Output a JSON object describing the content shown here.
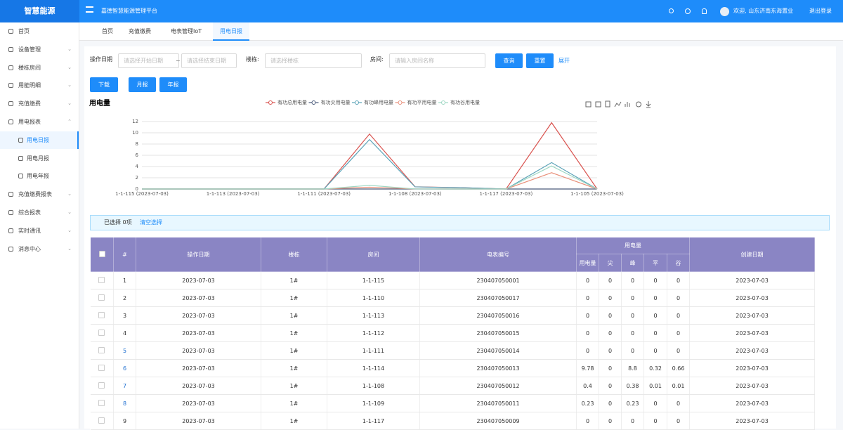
{
  "header": {
    "logo": "智慧能源",
    "title": "嘉德智慧能源管理平台",
    "user": "欢迎, 山东济南东海置业",
    "logout": "退出登录"
  },
  "sidebar": {
    "items": [
      "首页",
      "设备管理",
      "楼栋房间",
      "用能明细",
      "充值缴费",
      "用电报表",
      "用电日报",
      "用电月报",
      "用电年报",
      "充值缴费报表",
      "综合报表",
      "实时通讯",
      "消息中心"
    ]
  },
  "tabs": [
    "首页",
    "充值缴费",
    "电表管理IoT",
    "用电日报"
  ],
  "filters": {
    "date_label": "操作日期",
    "start_placeholder": "请选择开始日期",
    "separator": "~",
    "end_placeholder": "请选择结束日期",
    "building_label": "楼栋:",
    "building_placeholder": "请选择楼栋",
    "room_label": "房间:",
    "room_placeholder": "请输入房间名称",
    "search": "查询",
    "reset": "重置",
    "expand": "展开"
  },
  "actions": [
    "下载",
    "月报",
    "年报"
  ],
  "chart_data": {
    "type": "line",
    "title": "用电量",
    "categories": [
      "1-1-115 (2023-07-03)",
      null,
      "1-1-113 (2023-07-03)",
      null,
      "1-1-111 (2023-07-03)",
      null,
      "1-1-108 (2023-07-03)",
      null,
      "1-1-117 (2023-07-03)",
      null,
      "1-1-105 (2023-07-03)"
    ],
    "series": [
      {
        "name": "有功总用电量",
        "color": "#d9534f",
        "values": [
          0,
          0,
          0,
          0,
          0,
          9.78,
          0.4,
          0.23,
          0,
          11.8,
          0
        ]
      },
      {
        "name": "有功尖用电量",
        "color": "#4a5a7a",
        "values": [
          0,
          0,
          0,
          0,
          0,
          0,
          0,
          0,
          0,
          0,
          0
        ]
      },
      {
        "name": "有功峰用电量",
        "color": "#5ba3b8",
        "values": [
          0,
          0,
          0,
          0,
          0,
          8.8,
          0.38,
          0.23,
          0,
          4.7,
          0
        ]
      },
      {
        "name": "有功平用电量",
        "color": "#e8907a",
        "values": [
          0,
          0,
          0,
          0,
          0,
          0.32,
          0.01,
          0,
          0,
          2.9,
          0
        ]
      },
      {
        "name": "有功谷用电量",
        "color": "#9fd8c4",
        "values": [
          0,
          0,
          0,
          0,
          0,
          0.66,
          0.01,
          0,
          0,
          4.1,
          0
        ]
      }
    ],
    "ylim": [
      0,
      12
    ],
    "yticks": [
      0,
      2,
      4,
      6,
      8,
      10,
      12
    ],
    "grid": true
  },
  "selection": {
    "text": "已选择 0项",
    "clear": "清空选择"
  },
  "table": {
    "headers": [
      "#",
      "操作日期",
      "楼栋",
      "房间",
      "电表编号",
      "用电量",
      "创建日期"
    ],
    "sub_headers": [
      "用电量",
      "尖",
      "峰",
      "平",
      "谷"
    ],
    "rows": [
      [
        1,
        "2023-07-03",
        "1#",
        "1-1-115",
        "230407050001",
        0,
        0,
        0,
        0,
        0,
        "2023-07-03"
      ],
      [
        2,
        "2023-07-03",
        "1#",
        "1-1-110",
        "230407050017",
        0,
        0,
        0,
        0,
        0,
        "2023-07-03"
      ],
      [
        3,
        "2023-07-03",
        "1#",
        "1-1-113",
        "230407050016",
        0,
        0,
        0,
        0,
        0,
        "2023-07-03"
      ],
      [
        4,
        "2023-07-03",
        "1#",
        "1-1-112",
        "230407050015",
        0,
        0,
        0,
        0,
        0,
        "2023-07-03"
      ],
      [
        5,
        "2023-07-03",
        "1#",
        "1-1-111",
        "230407050014",
        0,
        0,
        0,
        0,
        0,
        "2023-07-03"
      ],
      [
        6,
        "2023-07-03",
        "1#",
        "1-1-114",
        "230407050013",
        9.78,
        0,
        8.8,
        0.32,
        0.66,
        "2023-07-03"
      ],
      [
        7,
        "2023-07-03",
        "1#",
        "1-1-108",
        "230407050012",
        0.4,
        0,
        0.38,
        0.01,
        0.01,
        "2023-07-03"
      ],
      [
        8,
        "2023-07-03",
        "1#",
        "1-1-109",
        "230407050011",
        0.23,
        0,
        0.23,
        0,
        0,
        "2023-07-03"
      ],
      [
        9,
        "2023-07-03",
        "1#",
        "1-1-117",
        "230407050009",
        0,
        0,
        0,
        0,
        0,
        "2023-07-03"
      ]
    ]
  }
}
